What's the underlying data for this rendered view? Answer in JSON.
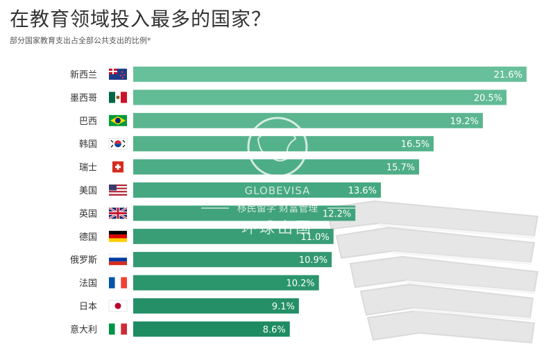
{
  "chart_data": {
    "type": "bar",
    "orientation": "horizontal",
    "title": "在教育领域投入最多的国家？",
    "subtitle": "部分国家教育支出占全部公共支出的比例*",
    "categories": [
      "新西兰",
      "墨西哥",
      "巴西",
      "韩国",
      "瑞士",
      "美国",
      "英国",
      "德国",
      "俄罗斯",
      "法国",
      "日本",
      "意大利"
    ],
    "values": [
      21.6,
      20.5,
      19.2,
      16.5,
      15.7,
      13.6,
      12.2,
      11.0,
      10.9,
      10.2,
      9.1,
      8.6
    ],
    "value_labels": [
      "21.6%",
      "20.5%",
      "19.2%",
      "16.5%",
      "15.7%",
      "13.6%",
      "12.2%",
      "11.0%",
      "10.9%",
      "10.2%",
      "9.1%",
      "8.6%"
    ],
    "xlim": [
      0,
      21.6
    ],
    "grid": false,
    "legend": "none",
    "bar_color_top": "#68c09a",
    "bar_color_bottom": "#1e8b62"
  },
  "watermark": {
    "brand": "GLOBEVISA",
    "tagline": "移民留学 财富管理",
    "name": "环球出国"
  }
}
